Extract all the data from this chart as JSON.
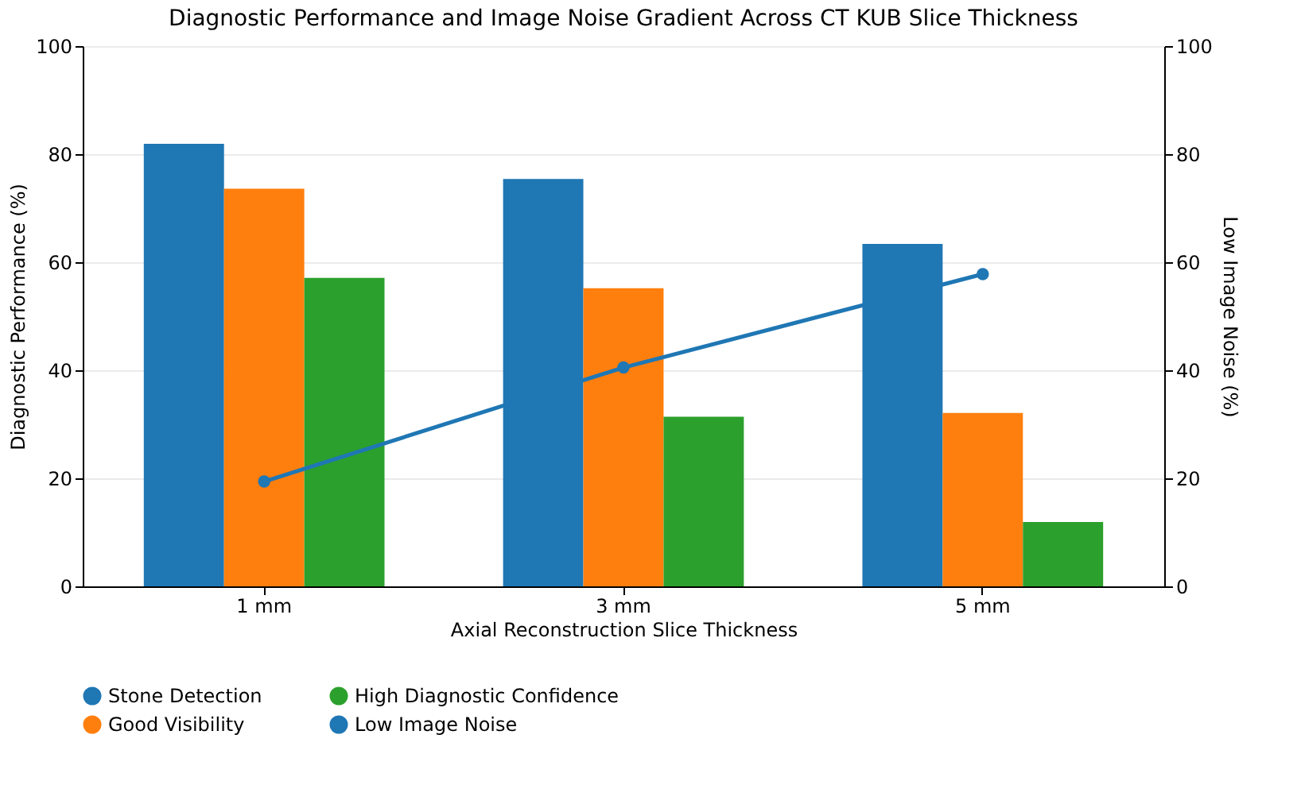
{
  "chart_data": {
    "type": "bar",
    "title": "Diagnostic Performance and Image Noise Gradient Across CT KUB Slice Thickness",
    "xlabel": "Axial Reconstruction Slice Thickness",
    "ylabel": "Diagnostic Performance (%)",
    "y2label": "Low Image Noise (%)",
    "categories": [
      "1 mm",
      "3 mm",
      "5 mm"
    ],
    "series": [
      {
        "name": "Stone Detection",
        "color": "#1f77b4",
        "values": [
          81.9,
          75.4,
          63.4
        ]
      },
      {
        "name": "Good Visibility",
        "color": "#ff7f0e",
        "values": [
          73.6,
          55.2,
          32.1
        ]
      },
      {
        "name": "High Diagnostic Confidence",
        "color": "#2ca02c",
        "values": [
          57.1,
          31.4,
          11.9
        ]
      },
      {
        "name": "Low Image Noise",
        "color": "#1f77b4",
        "type": "line",
        "axis": "y2",
        "marker": "circle",
        "line_style": "solid",
        "values": [
          19.4,
          40.5,
          57.8
        ]
      }
    ],
    "ylim": [
      0,
      100
    ],
    "yticks": [
      0,
      20,
      40,
      60,
      80,
      100
    ],
    "y2lim": [
      0,
      100
    ],
    "y2ticks": [
      0,
      20,
      40,
      60,
      80,
      100
    ],
    "grid": "y",
    "legend": "bottom"
  }
}
